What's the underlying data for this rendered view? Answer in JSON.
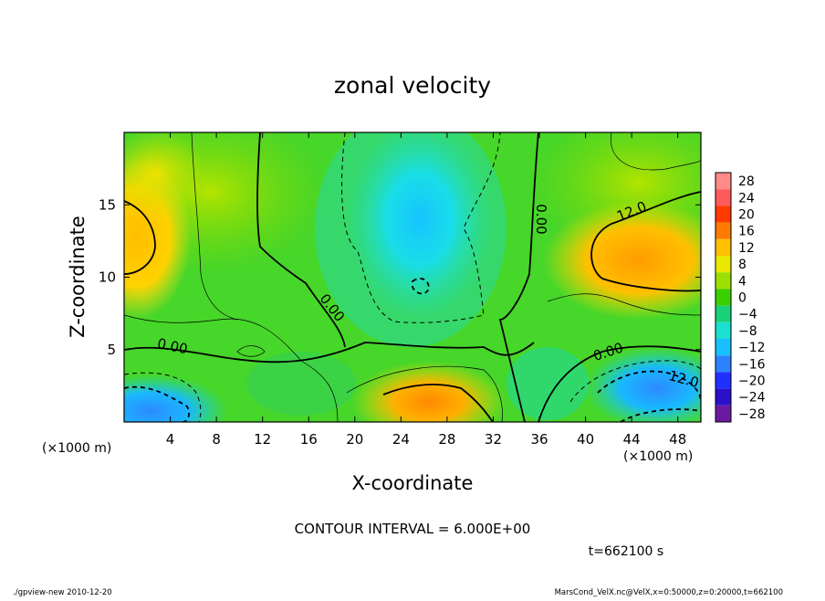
{
  "chart_data": {
    "type": "heatmap",
    "title": "zonal velocity",
    "xlabel": "X-coordinate",
    "ylabel": "Z-coordinate",
    "x_unit": "(×1000 m)",
    "y_unit": "(×1000 m)",
    "xlim": [
      0,
      50
    ],
    "ylim": [
      0,
      20
    ],
    "x_ticks": [
      4,
      8,
      12,
      16,
      20,
      24,
      28,
      32,
      36,
      40,
      44,
      48
    ],
    "y_ticks": [
      5,
      10,
      15
    ],
    "colorbar": {
      "levels": [
        28,
        24,
        20,
        16,
        12,
        8,
        4,
        0,
        -4,
        -8,
        -12,
        -16,
        -20,
        -24,
        -28
      ],
      "colors": [
        "#ff8a8a",
        "#ff5a5a",
        "#ff3a00",
        "#ff7a00",
        "#ffc000",
        "#e8e800",
        "#9be000",
        "#3ad000",
        "#19d27a",
        "#1ae0d0",
        "#19c0ff",
        "#2d82ff",
        "#2030ff",
        "#2a10c8",
        "#6a1aa0"
      ]
    },
    "contour_labels": [
      "0.00",
      "0.00",
      "0.00",
      "0.00",
      "12.0",
      "12.0"
    ],
    "contour_interval_text": "CONTOUR INTERVAL = 6.000E+00",
    "time_text": "t=662100 s",
    "footer_left": "./gpview-new  2010-12-20",
    "footer_right": "MarsCond_VelX.nc@VelX,x=0:50000,z=0:20000,t=662100"
  }
}
